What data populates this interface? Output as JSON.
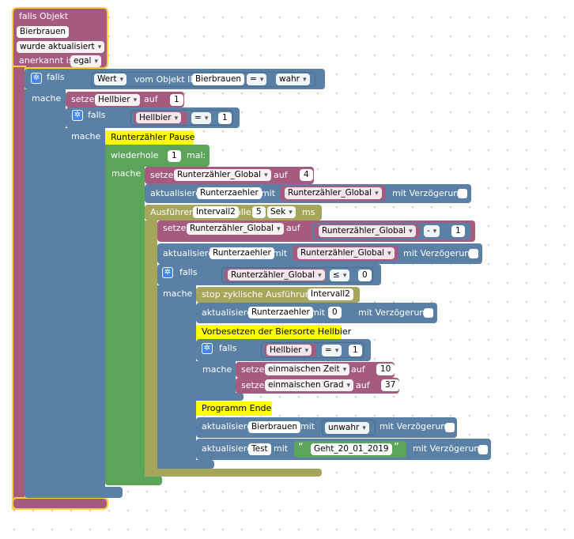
{
  "event": {
    "title": "falls Objekt",
    "object": "Bierbrauen",
    "trigger": "wurde aktualisiert",
    "ack_label": "anerkannt ist",
    "ack_value": "egal"
  },
  "if1": {
    "falls": "falls",
    "wert": "Wert",
    "vom_objekt": "vom Objekt ID",
    "object": "Bierbrauen",
    "op": "=",
    "value": "wahr",
    "mache": "mache"
  },
  "set_hellbier": {
    "setze": "setze",
    "var": "Hellbier",
    "auf": "auf",
    "value": "1"
  },
  "if2": {
    "falls": "falls",
    "var": "Hellbier",
    "op": "=",
    "value": "1",
    "mache": "mache"
  },
  "comment_pause": "Runterzähler Pause",
  "repeat": {
    "label": "wiederhole",
    "times": "1",
    "mal": "mal:",
    "mache": "mache"
  },
  "set_global": {
    "setze": "setze",
    "var": "Runterzähler_Global",
    "auf": "auf",
    "value": "4"
  },
  "update1": {
    "label": "aktualisiere",
    "obj": "Runterzaehler",
    "mit": "mit",
    "var": "Runterzähler_Global",
    "delay": "mit Verzögerung"
  },
  "interval": {
    "label": "Ausführen",
    "name": "Intervall2",
    "alle": "alle",
    "value": "5",
    "unit": "Sek",
    "ms": "ms"
  },
  "set_global2": {
    "setze": "setze",
    "var": "Runterzähler_Global",
    "auf": "auf",
    "var2": "Runterzähler_Global",
    "op": "-",
    "value": "1"
  },
  "update2": {
    "label": "aktualisiere",
    "obj": "Runterzaehler",
    "mit": "mit",
    "var": "Runterzähler_Global",
    "delay": "mit Verzögerung"
  },
  "if3": {
    "falls": "falls",
    "var": "Runterzähler_Global",
    "op": "≤",
    "value": "0",
    "mache": "mache"
  },
  "stop": {
    "label": "stop zyklische Ausführung",
    "name": "Intervall2"
  },
  "update3": {
    "label": "aktualisiere",
    "obj": "Runterzaehler",
    "mit": "mit",
    "value": "0",
    "delay": "mit Verzögerung"
  },
  "comment_vorbesetzen": "Vorbesetzen der Biersorte Hellbier",
  "if4": {
    "falls": "falls",
    "var": "Hellbier",
    "op": "=",
    "value": "1",
    "mache": "mache"
  },
  "set_zeit": {
    "setze": "setze",
    "var": "einmaischen Zeit",
    "auf": "auf",
    "value": "10"
  },
  "set_grad": {
    "setze": "setze",
    "var": "einmaischen Grad",
    "auf": "auf",
    "value": "37"
  },
  "comment_ende": "Programm Ende",
  "update4": {
    "label": "aktualisiere",
    "obj": "Bierbrauen",
    "mit": "mit",
    "value": "unwahr",
    "delay": "mit Verzögerung"
  },
  "update5": {
    "label": "aktualisiere",
    "obj": "Test",
    "mit": "mit",
    "open_quote": "“",
    "text": "Geht_20_01_2019",
    "close_quote": "”",
    "delay": "mit Verzögerung"
  },
  "colors": {
    "event": "#a55b80",
    "logic": "#5b80a5",
    "loop": "#5ba55b",
    "timer": "#a5a55b",
    "comment": "#ffff00",
    "selection": "#ffcc33"
  },
  "icons": {
    "gear": "gear-icon"
  }
}
